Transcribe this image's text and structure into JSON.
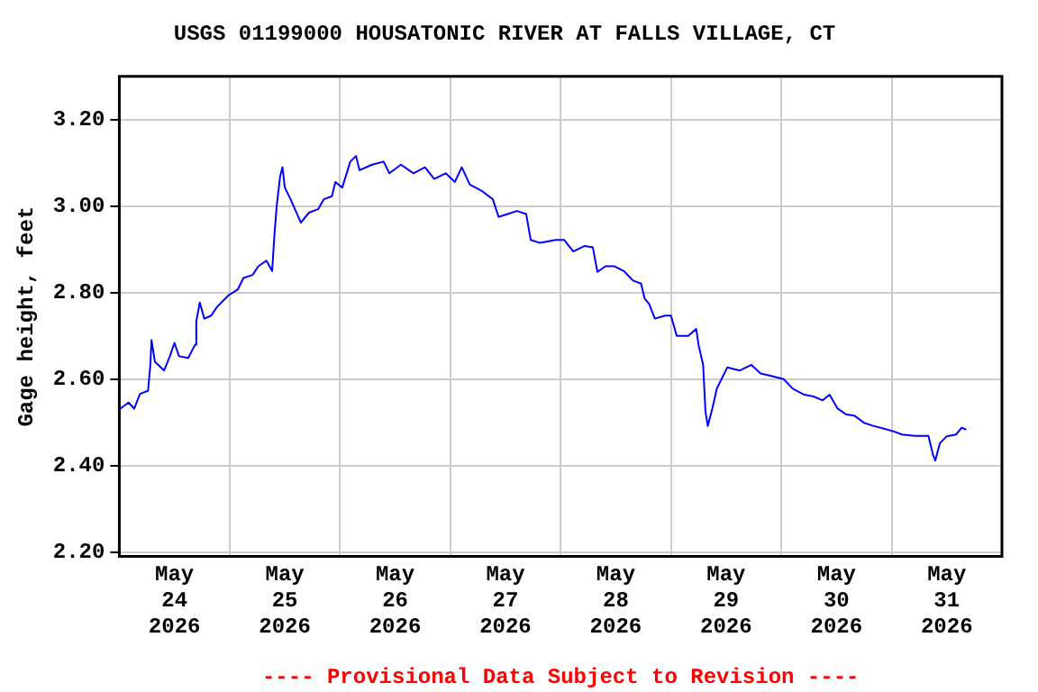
{
  "chart_data": {
    "type": "line",
    "title": "USGS 01199000 HOUSATONIC RIVER AT FALLS VILLAGE, CT",
    "ylabel": "Gage height, feet",
    "annotations": [
      "---- Provisional Data Subject to Revision ----"
    ],
    "x": [
      "2026-05-24T00:15",
      "2026-05-24T02:00",
      "2026-05-24T03:15",
      "2026-05-24T04:30",
      "2026-05-24T06:15",
      "2026-05-24T06:45",
      "2026-05-24T07:00",
      "2026-05-24T07:45",
      "2026-05-24T09:45",
      "2026-05-24T11:00",
      "2026-05-24T12:00",
      "2026-05-24T13:00",
      "2026-05-24T15:00",
      "2026-05-24T16:30",
      "2026-05-24T16:45",
      "2026-05-24T17:30",
      "2026-05-24T18:30",
      "2026-05-24T20:00",
      "2026-05-24T21:15",
      "2026-05-24T23:45",
      "2026-05-25T01:45",
      "2026-05-25T03:00",
      "2026-05-25T05:00",
      "2026-05-25T06:15",
      "2026-05-25T08:00",
      "2026-05-25T09:15",
      "2026-05-25T09:45",
      "2026-05-25T10:15",
      "2026-05-25T11:00",
      "2026-05-25T11:30",
      "2026-05-25T12:00",
      "2026-05-25T13:15",
      "2026-05-25T15:30",
      "2026-05-25T17:15",
      "2026-05-25T19:15",
      "2026-05-25T20:30",
      "2026-05-25T22:15",
      "2026-05-25T23:00",
      "2026-05-26T00:30",
      "2026-05-26T02:15",
      "2026-05-26T03:30",
      "2026-05-26T04:15",
      "2026-05-26T07:00",
      "2026-05-26T09:30",
      "2026-05-26T10:45",
      "2026-05-26T13:15",
      "2026-05-26T16:00",
      "2026-05-26T18:30",
      "2026-05-26T20:30",
      "2026-05-26T23:00",
      "2026-05-27T01:00",
      "2026-05-27T02:30",
      "2026-05-27T04:15",
      "2026-05-27T06:45",
      "2026-05-27T09:15",
      "2026-05-27T10:30",
      "2026-05-27T12:30",
      "2026-05-27T14:30",
      "2026-05-27T16:30",
      "2026-05-27T17:30",
      "2026-05-27T19:30",
      "2026-05-27T23:00",
      "2026-05-28T00:45",
      "2026-05-28T02:45",
      "2026-05-28T05:15",
      "2026-05-28T07:00",
      "2026-05-28T08:00",
      "2026-05-28T09:45",
      "2026-05-28T11:45",
      "2026-05-28T13:45",
      "2026-05-28T15:45",
      "2026-05-28T17:30",
      "2026-05-28T18:15",
      "2026-05-28T19:15",
      "2026-05-28T20:30",
      "2026-05-28T22:45",
      "2026-05-29T00:00",
      "2026-05-29T01:15",
      "2026-05-29T03:45",
      "2026-05-29T05:30",
      "2026-05-29T06:00",
      "2026-05-29T07:00",
      "2026-05-29T07:30",
      "2026-05-29T08:00",
      "2026-05-29T09:00",
      "2026-05-29T10:00",
      "2026-05-29T11:00",
      "2026-05-29T12:15",
      "2026-05-29T15:00",
      "2026-05-29T17:30",
      "2026-05-29T19:30",
      "2026-05-29T22:00",
      "2026-05-30T00:30",
      "2026-05-30T02:30",
      "2026-05-30T05:00",
      "2026-05-30T07:00",
      "2026-05-30T09:00",
      "2026-05-30T10:30",
      "2026-05-30T12:15",
      "2026-05-30T14:00",
      "2026-05-30T16:00",
      "2026-05-30T18:00",
      "2026-05-30T20:00",
      "2026-05-30T22:30",
      "2026-05-31T00:30",
      "2026-05-31T02:15",
      "2026-05-31T05:00",
      "2026-05-31T08:00",
      "2026-05-31T09:00",
      "2026-05-31T09:30",
      "2026-05-31T10:30",
      "2026-05-31T12:00",
      "2026-05-31T14:00",
      "2026-05-31T15:15",
      "2026-05-31T16:15"
    ],
    "series": [
      {
        "color": "#0000ff",
        "values": [
          2.532,
          2.546,
          2.532,
          2.566,
          2.573,
          2.633,
          2.69,
          2.64,
          2.62,
          2.653,
          2.684,
          2.653,
          2.649,
          2.68,
          2.734,
          2.777,
          2.74,
          2.747,
          2.767,
          2.794,
          2.807,
          2.834,
          2.841,
          2.861,
          2.874,
          2.85,
          2.935,
          3.002,
          3.07,
          3.09,
          3.043,
          3.016,
          2.962,
          2.985,
          2.993,
          3.016,
          3.023,
          3.056,
          3.043,
          3.103,
          3.116,
          3.083,
          3.096,
          3.103,
          3.076,
          3.096,
          3.076,
          3.09,
          3.063,
          3.076,
          3.056,
          3.09,
          3.05,
          3.036,
          3.016,
          2.975,
          2.982,
          2.989,
          2.982,
          2.922,
          2.915,
          2.922,
          2.922,
          2.895,
          2.908,
          2.905,
          2.848,
          2.861,
          2.861,
          2.85,
          2.828,
          2.821,
          2.787,
          2.774,
          2.74,
          2.747,
          2.747,
          2.7,
          2.7,
          2.716,
          2.679,
          2.633,
          2.526,
          2.492,
          2.532,
          2.579,
          2.6,
          2.627,
          2.62,
          2.633,
          2.613,
          2.607,
          2.6,
          2.578,
          2.564,
          2.56,
          2.551,
          2.564,
          2.532,
          2.519,
          2.515,
          2.499,
          2.492,
          2.485,
          2.479,
          2.472,
          2.469,
          2.469,
          2.425,
          2.412,
          2.452,
          2.468,
          2.472,
          2.488,
          2.483
        ]
      }
    ],
    "xlim": [
      "2026-05-24T00:00",
      "2026-06-01T00:00"
    ],
    "xticks": [
      {
        "value": "2026-05-24T00:00",
        "label": null
      },
      {
        "value": "2026-05-24T12:00",
        "label": "May\n24\n2026"
      },
      {
        "value": "2026-05-25T00:00",
        "label": null
      },
      {
        "value": "2026-05-25T12:00",
        "label": "May\n25\n2026"
      },
      {
        "value": "2026-05-26T00:00",
        "label": null
      },
      {
        "value": "2026-05-26T12:00",
        "label": "May\n26\n2026"
      },
      {
        "value": "2026-05-27T00:00",
        "label": null
      },
      {
        "value": "2026-05-27T12:00",
        "label": "May\n27\n2026"
      },
      {
        "value": "2026-05-28T00:00",
        "label": null
      },
      {
        "value": "2026-05-28T12:00",
        "label": "May\n28\n2026"
      },
      {
        "value": "2026-05-29T00:00",
        "label": null
      },
      {
        "value": "2026-05-29T12:00",
        "label": "May\n29\n2026"
      },
      {
        "value": "2026-05-30T00:00",
        "label": null
      },
      {
        "value": "2026-05-30T12:00",
        "label": "May\n30\n2026"
      },
      {
        "value": "2026-05-31T00:00",
        "label": null
      },
      {
        "value": "2026-05-31T12:00",
        "label": "May\n31\n2026"
      },
      {
        "value": "2026-06-01T00:00",
        "label": null
      }
    ],
    "ylim": [
      2.19,
      3.3
    ],
    "yticks": [
      {
        "value": 2.2,
        "label": "2.20"
      },
      {
        "value": 2.4,
        "label": "2.40"
      },
      {
        "value": 2.6,
        "label": "2.60"
      },
      {
        "value": 2.8,
        "label": "2.80"
      },
      {
        "value": 3.0,
        "label": "3.00"
      },
      {
        "value": 3.2,
        "label": "3.20"
      }
    ],
    "grid": true,
    "legend": false,
    "marker": "none",
    "line_style": "solid"
  }
}
